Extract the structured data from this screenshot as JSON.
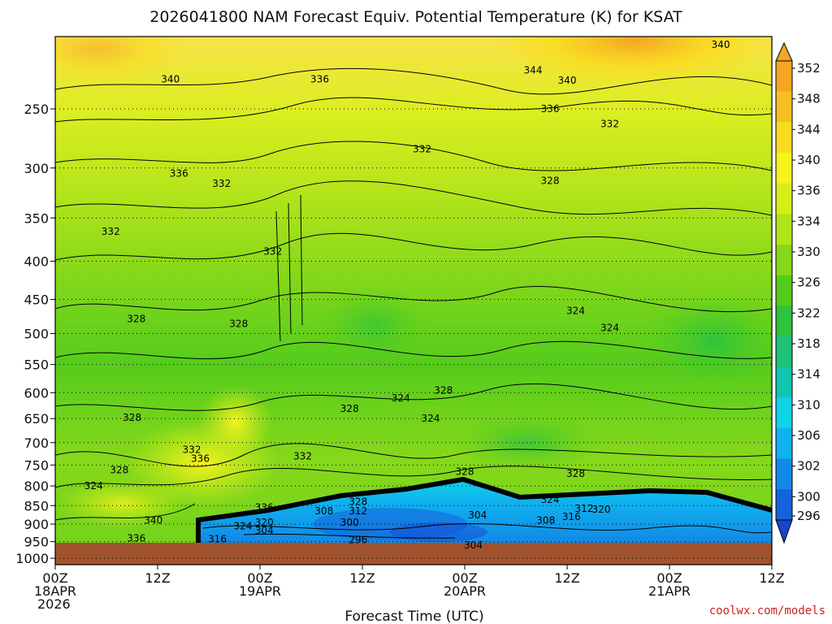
{
  "title": "2026041800 NAM Forecast Equiv. Potential Temperature (K) for KSAT",
  "xlabel": "Forecast Time (UTC)",
  "credit": "coolwx.com/models",
  "ground_color": "#a0522d",
  "chart_data": {
    "type": "heatmap",
    "title": "2026041800 NAM Forecast Equiv. Potential Temperature (K) for KSAT",
    "xlabel": "Forecast Time (UTC)",
    "ylabel": "",
    "x_ticks": [
      {
        "hour": 0,
        "lines": [
          "00Z",
          "18APR",
          "2026"
        ]
      },
      {
        "hour": 12,
        "lines": [
          "12Z"
        ]
      },
      {
        "hour": 24,
        "lines": [
          "00Z",
          "19APR"
        ]
      },
      {
        "hour": 36,
        "lines": [
          "12Z"
        ]
      },
      {
        "hour": 48,
        "lines": [
          "00Z",
          "20APR"
        ]
      },
      {
        "hour": 60,
        "lines": [
          "12Z"
        ]
      },
      {
        "hour": 72,
        "lines": [
          "00Z",
          "21APR"
        ]
      },
      {
        "hour": 84,
        "lines": [
          "12Z"
        ]
      }
    ],
    "x_range_hours": [
      0,
      84
    ],
    "y_ticks_hpa": [
      250,
      300,
      350,
      400,
      450,
      500,
      550,
      600,
      650,
      700,
      750,
      800,
      850,
      900,
      950,
      1000
    ],
    "y_range_hpa": [
      200,
      1020
    ],
    "y_scale": "log-pressure (inverted)",
    "grid": "dotted at y ticks",
    "colorbar": {
      "labels": [
        352,
        348,
        344,
        340,
        336,
        334,
        330,
        326,
        322,
        318,
        314,
        310,
        306,
        302,
        300,
        296
      ],
      "colors": [
        "#f5a623",
        "#f7c022",
        "#fadc1e",
        "#f7f21c",
        "#d7ee1a",
        "#b2e41a",
        "#86d81a",
        "#55cc1c",
        "#2dc33c",
        "#1dc177",
        "#10c6b0",
        "#0fd3e6",
        "#0fb2ee",
        "#1289e6",
        "#1563dc",
        "#1744d0"
      ]
    },
    "contour_labels": [
      {
        "value": 340,
        "hour": 78,
        "hpa": 205
      },
      {
        "value": 340,
        "hour": 13.5,
        "hpa": 228
      },
      {
        "value": 336,
        "hour": 31,
        "hpa": 228
      },
      {
        "value": 344,
        "hour": 56,
        "hpa": 222
      },
      {
        "value": 340,
        "hour": 60,
        "hpa": 229
      },
      {
        "value": 336,
        "hour": 58,
        "hpa": 250
      },
      {
        "value": 332,
        "hour": 65,
        "hpa": 262
      },
      {
        "value": 332,
        "hour": 43,
        "hpa": 283
      },
      {
        "value": 336,
        "hour": 14.5,
        "hpa": 305
      },
      {
        "value": 332,
        "hour": 19.5,
        "hpa": 315
      },
      {
        "value": 328,
        "hour": 58,
        "hpa": 312
      },
      {
        "value": 332,
        "hour": 6.5,
        "hpa": 365
      },
      {
        "value": 332,
        "hour": 25.5,
        "hpa": 388
      },
      {
        "value": 328,
        "hour": 9.5,
        "hpa": 478
      },
      {
        "value": 328,
        "hour": 21.5,
        "hpa": 485
      },
      {
        "value": 324,
        "hour": 61,
        "hpa": 466
      },
      {
        "value": 324,
        "hour": 65,
        "hpa": 491
      },
      {
        "value": 328,
        "hour": 45.5,
        "hpa": 596
      },
      {
        "value": 324,
        "hour": 40.5,
        "hpa": 610
      },
      {
        "value": 328,
        "hour": 34.5,
        "hpa": 630
      },
      {
        "value": 324,
        "hour": 44,
        "hpa": 650
      },
      {
        "value": 328,
        "hour": 9,
        "hpa": 648
      },
      {
        "value": 332,
        "hour": 16,
        "hpa": 715
      },
      {
        "value": 336,
        "hour": 17,
        "hpa": 735
      },
      {
        "value": 332,
        "hour": 29,
        "hpa": 730
      },
      {
        "value": 328,
        "hour": 7.5,
        "hpa": 762
      },
      {
        "value": 328,
        "hour": 48,
        "hpa": 766
      },
      {
        "value": 328,
        "hour": 61,
        "hpa": 770
      },
      {
        "value": 324,
        "hour": 4.5,
        "hpa": 800
      },
      {
        "value": 324,
        "hour": 58,
        "hpa": 835
      },
      {
        "value": 336,
        "hour": 24.5,
        "hpa": 855
      },
      {
        "value": 328,
        "hour": 35.5,
        "hpa": 840
      },
      {
        "value": 308,
        "hour": 31.5,
        "hpa": 865
      },
      {
        "value": 312,
        "hour": 35.5,
        "hpa": 865
      },
      {
        "value": 304,
        "hour": 49.5,
        "hpa": 875
      },
      {
        "value": 312,
        "hour": 62,
        "hpa": 858
      },
      {
        "value": 320,
        "hour": 64,
        "hpa": 860
      },
      {
        "value": 308,
        "hour": 57.5,
        "hpa": 890
      },
      {
        "value": 316,
        "hour": 60.5,
        "hpa": 880
      },
      {
        "value": 340,
        "hour": 11.5,
        "hpa": 890
      },
      {
        "value": 324,
        "hour": 22,
        "hpa": 905
      },
      {
        "value": 320,
        "hour": 24.5,
        "hpa": 895
      },
      {
        "value": 300,
        "hour": 34.5,
        "hpa": 895
      },
      {
        "value": 304,
        "hour": 24.5,
        "hpa": 918
      },
      {
        "value": 336,
        "hour": 9.5,
        "hpa": 940
      },
      {
        "value": 316,
        "hour": 19,
        "hpa": 943
      },
      {
        "value": 296,
        "hour": 35.5,
        "hpa": 945
      },
      {
        "value": 304,
        "hour": 49,
        "hpa": 960
      }
    ]
  }
}
